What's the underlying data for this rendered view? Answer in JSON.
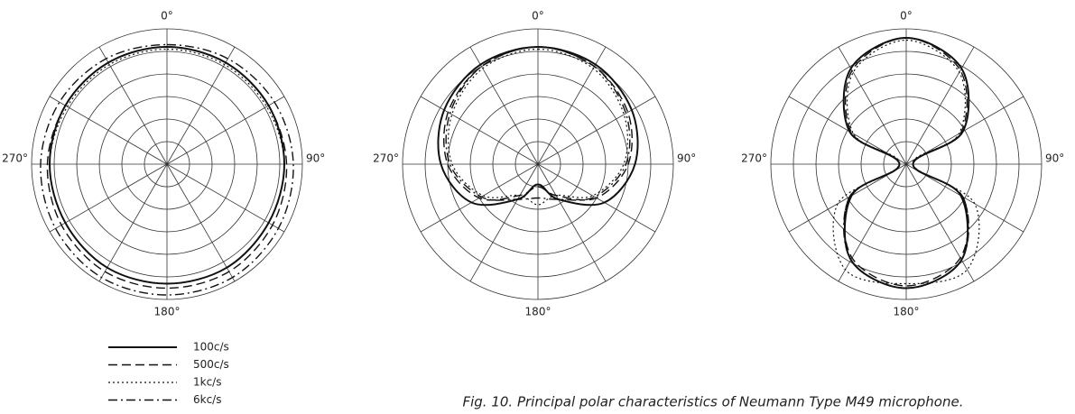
{
  "caption": "Fig. 10.  Principal polar characteristics of Neumann Type M49 microphone.",
  "chart_data": [
    {
      "type": "polar",
      "theta": [
        0,
        30,
        60,
        90,
        120,
        150,
        180,
        210,
        240,
        270,
        300,
        330
      ],
      "rlim": [
        0,
        6
      ],
      "rgrid": [
        1,
        2,
        3,
        4,
        5,
        6
      ],
      "angle_grid": [
        0,
        30,
        60,
        90,
        120,
        150,
        180,
        210,
        240,
        270,
        300,
        330
      ],
      "angle_ticks": [
        {
          "value": 0,
          "label": "0°"
        },
        {
          "value": 90,
          "label": "90°"
        },
        {
          "value": 180,
          "label": "180°"
        },
        {
          "value": 270,
          "label": "270°"
        }
      ],
      "series": [
        {
          "name": "100c/s",
          "color": "#111",
          "dash": "none",
          "width": 2,
          "values": [
            5.2,
            5.2,
            5.2,
            5.2,
            5.2,
            5.3,
            5.3,
            5.3,
            5.2,
            5.2,
            5.2,
            5.2
          ]
        },
        {
          "name": "500c/s",
          "color": "#111",
          "dash": "10 5",
          "width": 1.4,
          "values": [
            5.2,
            5.2,
            5.2,
            5.3,
            5.4,
            5.5,
            5.5,
            5.5,
            5.4,
            5.3,
            5.2,
            5.2
          ]
        },
        {
          "name": "1kc/s",
          "color": "#111",
          "dash": "2 3",
          "width": 1.2,
          "values": [
            5.1,
            5.1,
            5.1,
            5.2,
            5.2,
            5.3,
            5.3,
            5.3,
            5.2,
            5.2,
            5.1,
            5.1
          ]
        },
        {
          "name": "6kc/s",
          "color": "#111",
          "dash": "10 4 2 4",
          "width": 1.4,
          "values": [
            5.3,
            5.4,
            5.5,
            5.6,
            5.7,
            5.8,
            5.8,
            5.8,
            5.7,
            5.6,
            5.5,
            5.4
          ]
        }
      ]
    },
    {
      "type": "polar",
      "theta": [
        0,
        30,
        60,
        90,
        120,
        150,
        180,
        210,
        240,
        270,
        300,
        330
      ],
      "rlim": [
        0,
        6
      ],
      "rgrid": [
        1,
        2,
        3,
        4,
        5,
        6
      ],
      "angle_grid": [
        0,
        30,
        60,
        90,
        120,
        150,
        180,
        210,
        240,
        270,
        300,
        330
      ],
      "angle_ticks": [
        {
          "value": 0,
          "label": "0°"
        },
        {
          "value": 90,
          "label": "90°"
        },
        {
          "value": 180,
          "label": "180°"
        },
        {
          "value": 270,
          "label": "270°"
        }
      ],
      "series": [
        {
          "values": [
            5.2,
            5.1,
            4.8,
            4.3,
            3.4,
            1.8,
            0.9,
            1.8,
            3.4,
            4.3,
            4.8,
            5.1
          ]
        },
        {
          "values": [
            5.2,
            5.0,
            4.6,
            4.0,
            3.0,
            1.6,
            1.0,
            1.6,
            3.0,
            4.0,
            4.6,
            5.0
          ]
        },
        {
          "values": [
            5.1,
            4.9,
            4.4,
            3.8,
            2.8,
            1.6,
            1.8,
            1.6,
            2.8,
            3.8,
            4.4,
            4.9
          ]
        },
        {
          "values": [
            5.2,
            5.0,
            4.5,
            3.9,
            2.9,
            1.8,
            1.5,
            1.8,
            2.9,
            3.9,
            4.5,
            5.0
          ]
        }
      ]
    },
    {
      "type": "polar",
      "theta": [
        0,
        30,
        60,
        90,
        120,
        150,
        180,
        210,
        240,
        270,
        300,
        330
      ],
      "rlim": [
        0,
        6
      ],
      "rgrid": [
        1,
        2,
        3,
        4,
        5,
        6
      ],
      "angle_grid": [
        0,
        30,
        60,
        90,
        120,
        150,
        180,
        210,
        240,
        270,
        300,
        330
      ],
      "angle_ticks": [
        {
          "value": 0,
          "label": "0°"
        },
        {
          "value": 90,
          "label": "90°"
        },
        {
          "value": 180,
          "label": "180°"
        },
        {
          "value": 270,
          "label": "270°"
        }
      ],
      "series": [
        {
          "values": [
            5.6,
            4.9,
            2.9,
            0.3,
            2.8,
            4.9,
            5.5,
            4.9,
            2.8,
            0.3,
            2.9,
            4.9
          ]
        },
        {
          "values": [
            5.6,
            4.8,
            2.8,
            0.3,
            2.9,
            4.8,
            5.4,
            4.8,
            2.9,
            0.3,
            2.8,
            4.8
          ]
        },
        {
          "values": [
            5.5,
            4.7,
            2.7,
            0.3,
            3.5,
            5.4,
            5.3,
            5.4,
            3.5,
            0.3,
            2.7,
            4.7
          ]
        },
        {
          "values": [
            5.6,
            4.9,
            2.9,
            0.3,
            2.9,
            4.9,
            5.5,
            4.9,
            2.9,
            0.3,
            2.9,
            4.9
          ]
        }
      ]
    }
  ]
}
